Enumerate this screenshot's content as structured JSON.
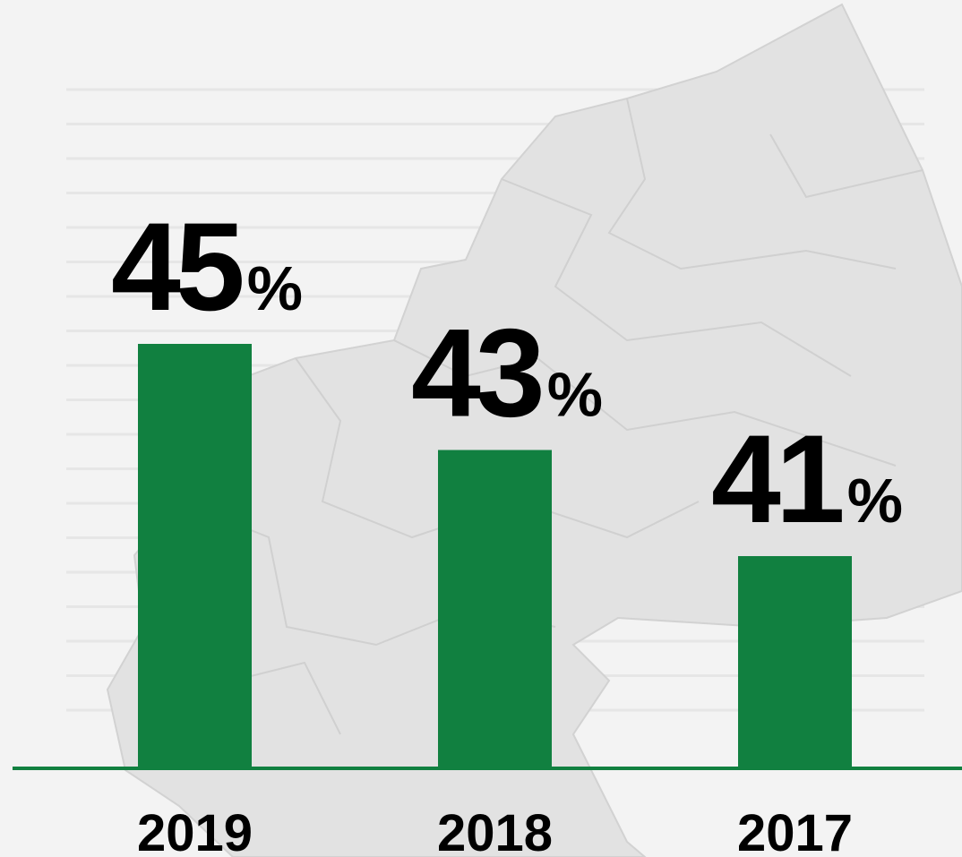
{
  "chart_data": {
    "type": "bar",
    "categories": [
      "2019",
      "2018",
      "2017"
    ],
    "values": [
      45,
      43,
      41
    ],
    "value_labels": [
      "45%",
      "43%",
      "41%"
    ],
    "color": "#118040",
    "ylim": [
      37,
      45
    ]
  }
}
